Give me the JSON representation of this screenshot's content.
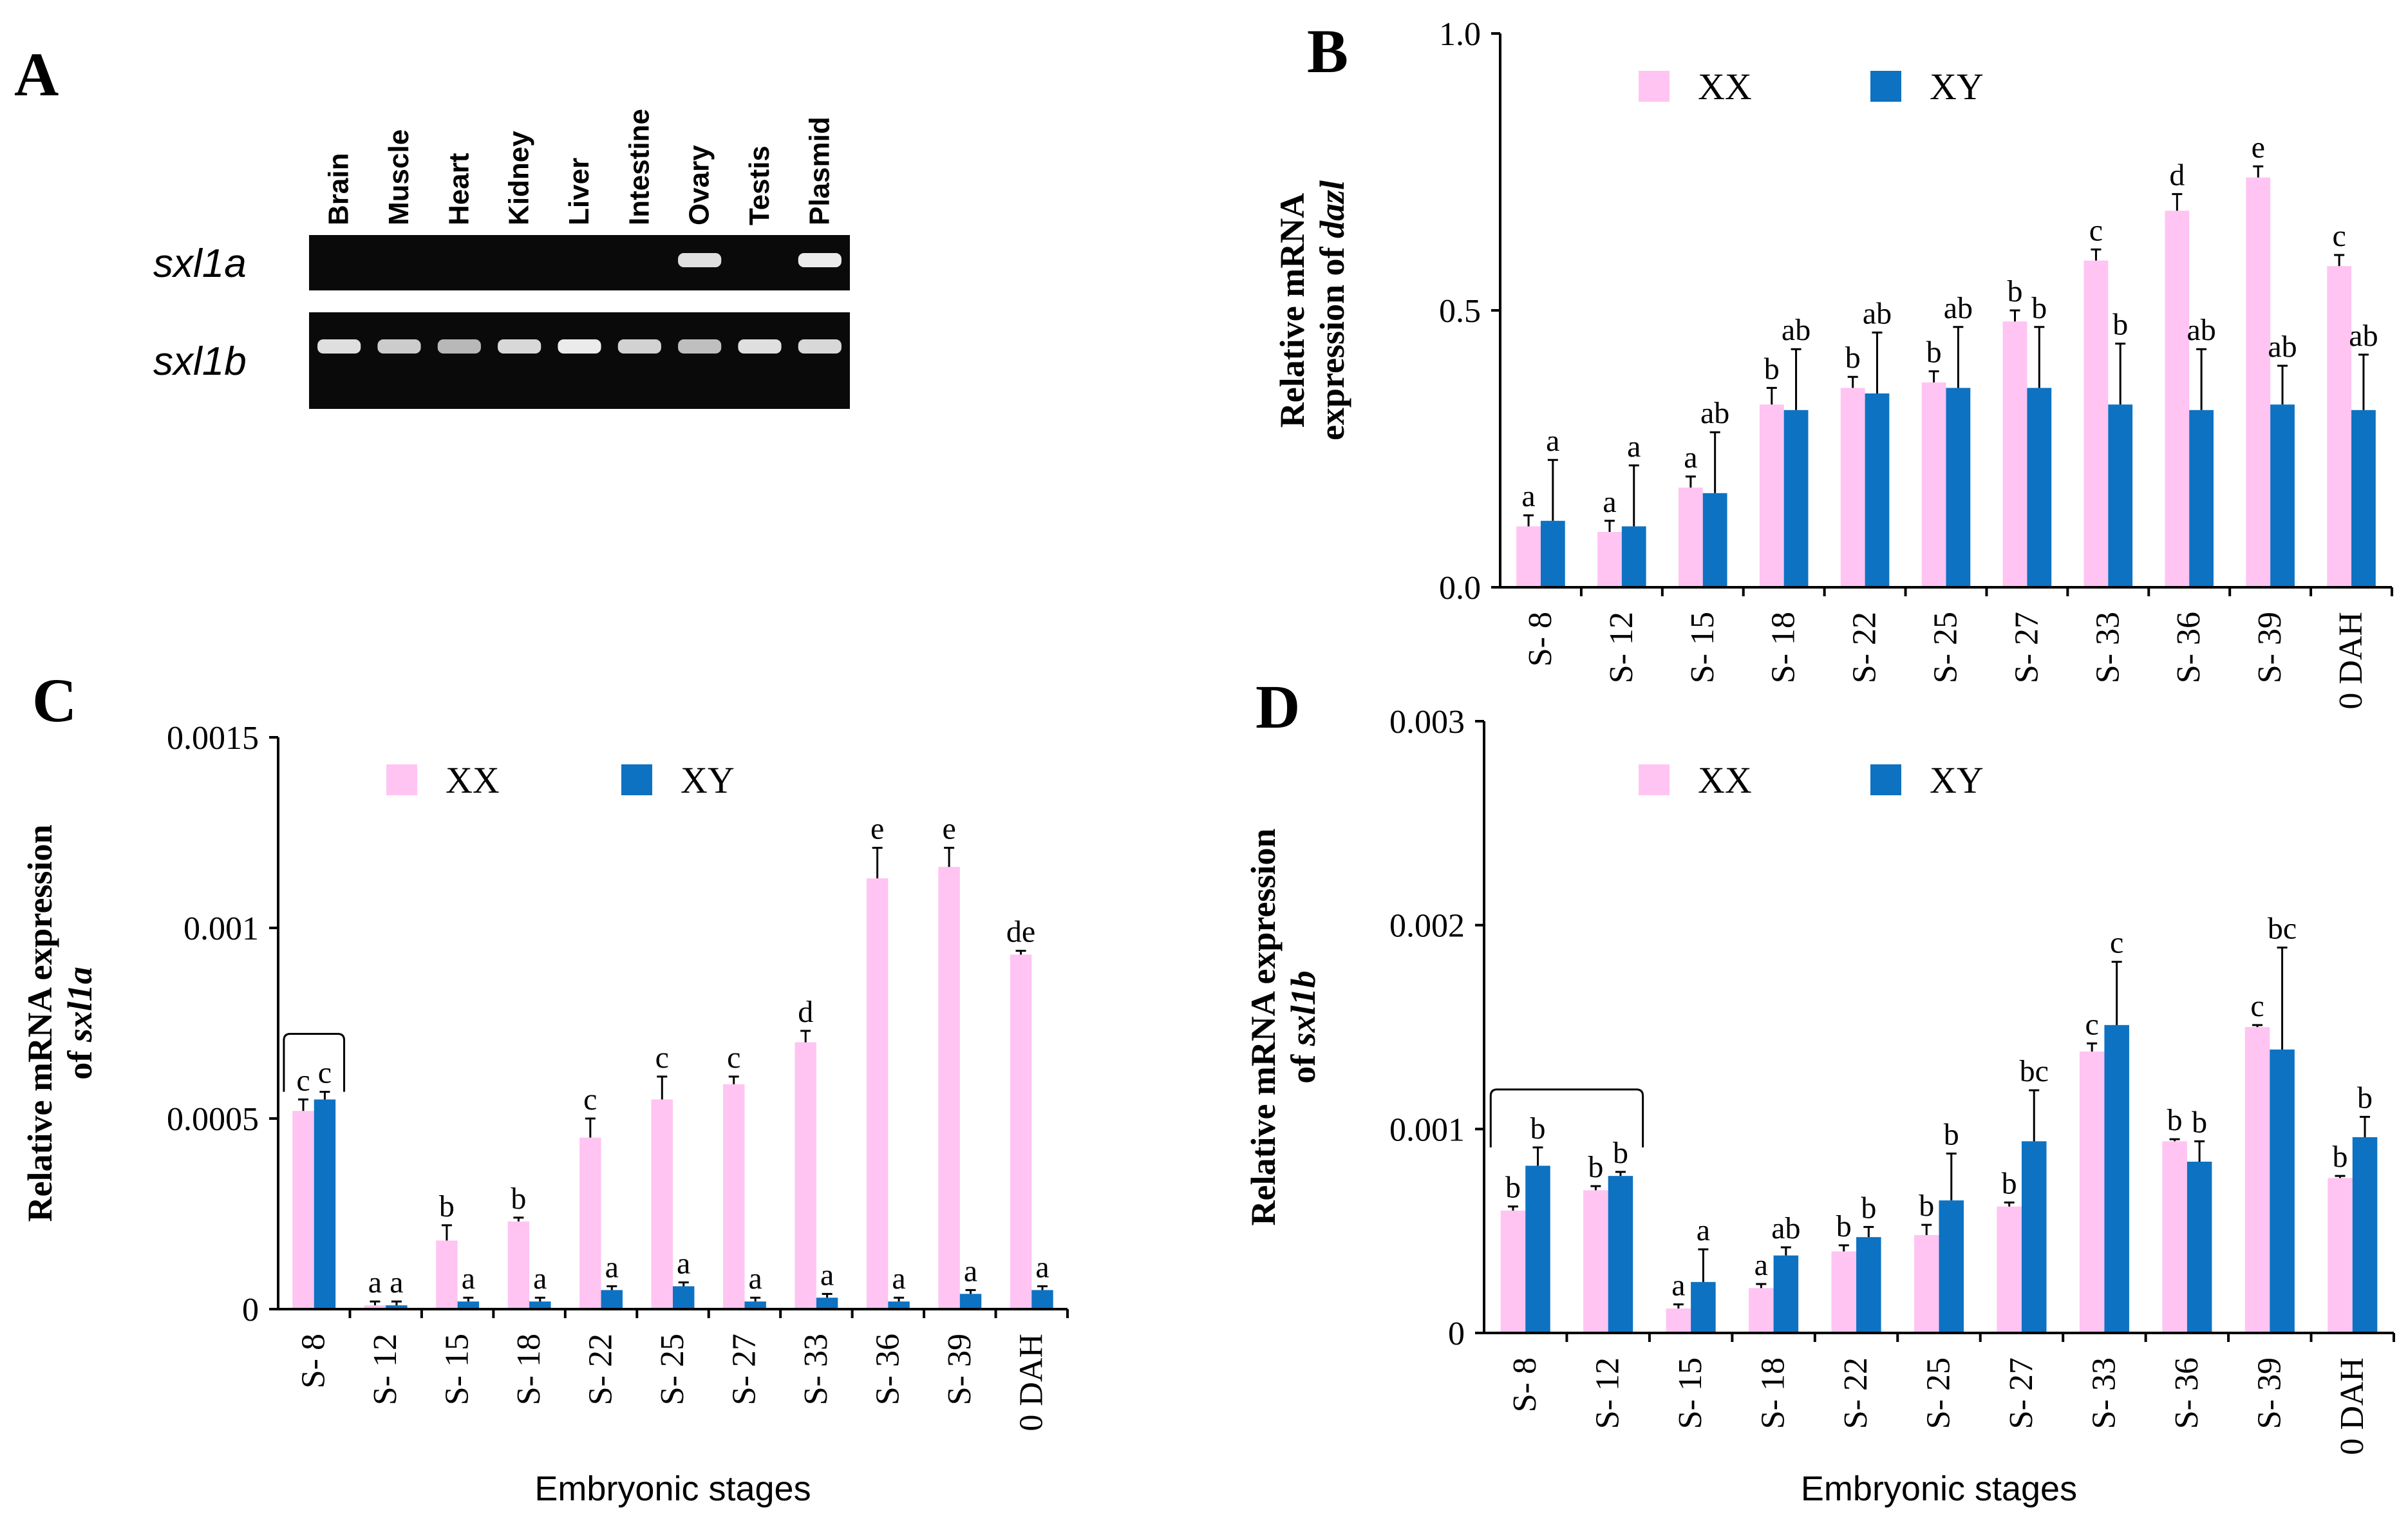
{
  "panels": {
    "A": {
      "letter": "A",
      "lanes": [
        "Brain",
        "Muscle",
        "Heart",
        "Kidney",
        "Liver",
        "Intestine",
        "Ovary",
        "Testis",
        "Plasmid"
      ],
      "genes": [
        {
          "name": "sxl1a",
          "band_intensity": [
            0,
            0,
            0,
            0,
            0,
            0,
            0.85,
            0,
            0.95
          ]
        },
        {
          "name": "sxl1b",
          "band_intensity": [
            0.85,
            0.7,
            0.55,
            0.8,
            0.95,
            0.75,
            0.6,
            0.85,
            0.8
          ]
        }
      ]
    },
    "B": {
      "letter": "B"
    },
    "C": {
      "letter": "C"
    },
    "D": {
      "letter": "D"
    }
  },
  "colors": {
    "xx": "#ffc4f2",
    "xy": "#0d72c2",
    "axis": "#000000"
  },
  "chart_data": [
    {
      "panel": "B",
      "type": "bar",
      "ylabel_line1": "Relative mRNA",
      "ylabel_line2_prefix": "expression of ",
      "ylabel_gene": "dazl",
      "xlabel": "",
      "ylim": [
        0,
        1.0
      ],
      "yticks": [
        {
          "value": 0.0,
          "label": "0.0"
        },
        {
          "value": 0.5,
          "label": "0.5"
        },
        {
          "value": 1.0,
          "label": "1.0"
        }
      ],
      "categories": [
        "S- 8",
        "S- 12",
        "S- 15",
        "S- 18",
        "S- 22",
        "S- 25",
        "S- 27",
        "S- 33",
        "S- 36",
        "S- 39",
        "0 DAH"
      ],
      "series": [
        {
          "name": "XX",
          "values": [
            0.11,
            0.1,
            0.18,
            0.33,
            0.36,
            0.37,
            0.48,
            0.59,
            0.68,
            0.74,
            0.58
          ],
          "errors": [
            0.02,
            0.02,
            0.02,
            0.03,
            0.02,
            0.02,
            0.02,
            0.02,
            0.03,
            0.02,
            0.02
          ],
          "sig": [
            "a",
            "a",
            "a",
            "b",
            "b",
            "b",
            "b",
            "c",
            "d",
            "e",
            "c"
          ]
        },
        {
          "name": "XY",
          "values": [
            0.12,
            0.11,
            0.17,
            0.32,
            0.35,
            0.36,
            0.36,
            0.33,
            0.32,
            0.33,
            0.32
          ],
          "errors": [
            0.11,
            0.11,
            0.11,
            0.11,
            0.11,
            0.11,
            0.11,
            0.11,
            0.11,
            0.07,
            0.1
          ],
          "sig": [
            "a",
            "a",
            "ab",
            "ab",
            "ab",
            "ab",
            "b",
            "b",
            "ab",
            "ab",
            "ab"
          ]
        }
      ],
      "brackets": []
    },
    {
      "panel": "C",
      "type": "bar",
      "ylabel_line1": "Relative mRNA expression",
      "ylabel_line2_prefix": "of ",
      "ylabel_gene": "sxl1a",
      "xlabel": "Embryonic stages",
      "ylim": [
        0,
        0.0015
      ],
      "yticks": [
        {
          "value": 0,
          "label": "0"
        },
        {
          "value": 0.0005,
          "label": "0.0005"
        },
        {
          "value": 0.001,
          "label": "0.001"
        },
        {
          "value": 0.0015,
          "label": "0.0015"
        }
      ],
      "categories": [
        "S- 8",
        "S- 12",
        "S- 15",
        "S- 18",
        "S- 22",
        "S- 25",
        "S- 27",
        "S- 33",
        "S- 36",
        "S- 39",
        "0 DAH"
      ],
      "series": [
        {
          "name": "XX",
          "values": [
            0.00052,
            1e-05,
            0.00018,
            0.00023,
            0.00045,
            0.00055,
            0.00059,
            0.0007,
            0.00113,
            0.00116,
            0.00093
          ],
          "errors": [
            3e-05,
            1e-05,
            4e-05,
            1e-05,
            5e-05,
            6e-05,
            2e-05,
            3e-05,
            8e-05,
            5e-05,
            1e-05
          ],
          "sig": [
            "c",
            "a",
            "b",
            "b",
            "c",
            "c",
            "c",
            "d",
            "e",
            "e",
            "de"
          ]
        },
        {
          "name": "XY",
          "values": [
            0.00055,
            1e-05,
            2e-05,
            2e-05,
            5e-05,
            6e-05,
            2e-05,
            3e-05,
            2e-05,
            4e-05,
            5e-05
          ],
          "errors": [
            2e-05,
            1e-05,
            1e-05,
            1e-05,
            1e-05,
            1e-05,
            1e-05,
            1e-05,
            1e-05,
            1e-05,
            1e-05
          ],
          "sig": [
            "c",
            "a",
            "a",
            "a",
            "a",
            "a",
            "a",
            "a",
            "a",
            "a",
            "a"
          ]
        }
      ],
      "brackets": [
        {
          "from": 0,
          "to": 0
        }
      ]
    },
    {
      "panel": "D",
      "type": "bar",
      "ylabel_line1": "Relative mRNA expression",
      "ylabel_line2_prefix": "of ",
      "ylabel_gene": "sxl1b",
      "xlabel": "Embryonic stages",
      "ylim": [
        0,
        0.003
      ],
      "yticks": [
        {
          "value": 0,
          "label": "0"
        },
        {
          "value": 0.001,
          "label": "0.001"
        },
        {
          "value": 0.002,
          "label": "0.002"
        },
        {
          "value": 0.003,
          "label": "0.003"
        }
      ],
      "categories": [
        "S- 8",
        "S- 12",
        "S- 15",
        "S- 18",
        "S- 22",
        "S- 25",
        "S- 27",
        "S- 33",
        "S- 36",
        "S- 39",
        "0 DAH"
      ],
      "series": [
        {
          "name": "XX",
          "values": [
            0.0006,
            0.0007,
            0.00012,
            0.00022,
            0.0004,
            0.00048,
            0.00062,
            0.00138,
            0.00094,
            0.0015,
            0.00076
          ],
          "errors": [
            2e-05,
            2e-05,
            2e-05,
            2e-05,
            3e-05,
            5e-05,
            2e-05,
            4e-05,
            1e-05,
            1e-05,
            1e-05
          ],
          "sig": [
            "b",
            "b",
            "a",
            "a",
            "b",
            "b",
            "b",
            "c",
            "b",
            "c",
            "b"
          ]
        },
        {
          "name": "XY",
          "values": [
            0.00082,
            0.00077,
            0.00025,
            0.00038,
            0.00047,
            0.00065,
            0.00094,
            0.00151,
            0.00084,
            0.00139,
            0.00096
          ],
          "errors": [
            9e-05,
            2e-05,
            0.00016,
            4e-05,
            5e-05,
            0.00023,
            0.00025,
            0.00031,
            0.0001,
            0.0005,
            0.0001
          ],
          "sig": [
            "b",
            "b",
            "a",
            "ab",
            "b",
            "b",
            "bc",
            "c",
            "b",
            "bc",
            "b"
          ]
        }
      ],
      "brackets": [
        {
          "from": 0,
          "to": 1
        }
      ]
    }
  ]
}
